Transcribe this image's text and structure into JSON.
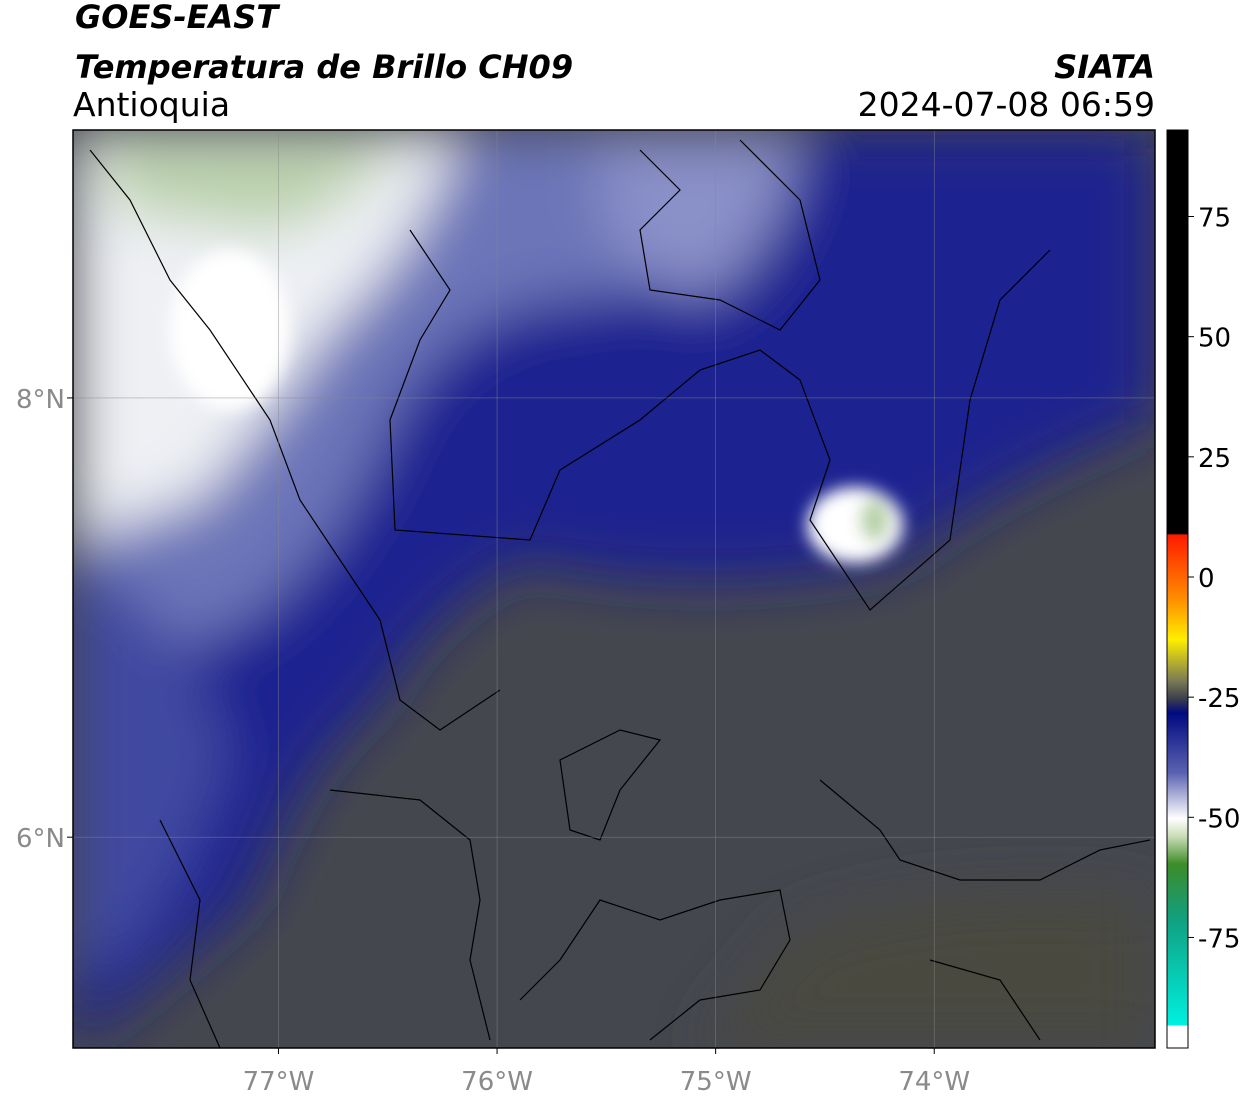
{
  "header": {
    "title": "GOES-EAST",
    "subtitle": "Temperatura de Brillo CH09",
    "region": "Antioquia",
    "source": "SIATA",
    "datetime": "2024-07-08 06:59"
  },
  "map": {
    "xlim": [
      -77.94,
      -72.99
    ],
    "ylim": [
      5.04,
      9.22
    ],
    "xticks": [
      {
        "value": -77,
        "label": "77°W"
      },
      {
        "value": -76,
        "label": "76°W"
      },
      {
        "value": -75,
        "label": "75°W"
      },
      {
        "value": -74,
        "label": "74°W"
      }
    ],
    "yticks": [
      {
        "value": 8,
        "label": "8°N"
      },
      {
        "value": 6,
        "label": "6°N"
      }
    ]
  },
  "colorbar": {
    "lim": [
      -98,
      93
    ],
    "ticks": [
      75,
      50,
      25,
      0,
      -25,
      -50,
      -75
    ]
  }
}
